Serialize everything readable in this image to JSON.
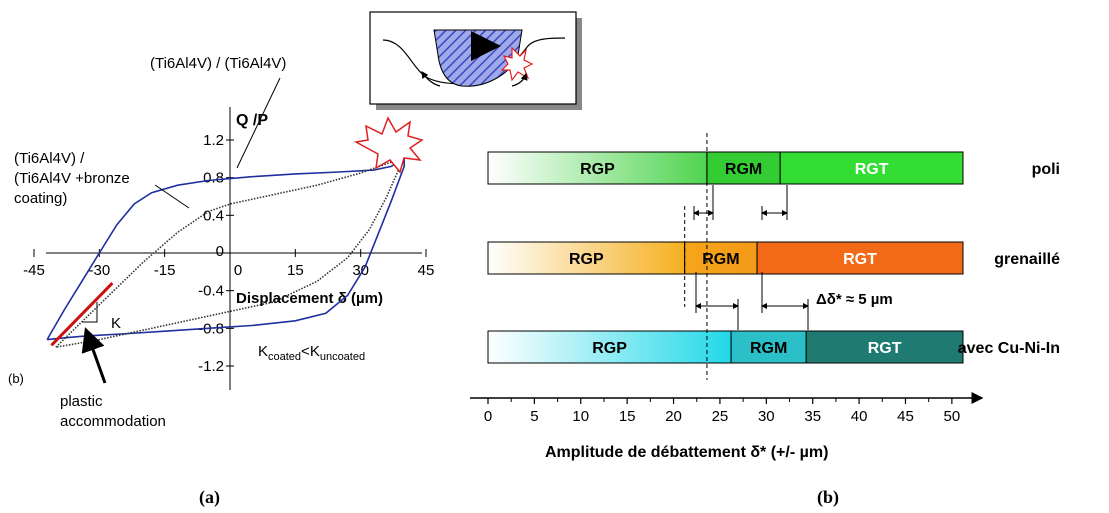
{
  "chart_data": [
    {
      "type": "line",
      "panel_label": "(a)",
      "corner_label": "(b)",
      "ylabel": "Q /P",
      "xlabel": "Displacement δ (µm)",
      "xlim": [
        -45,
        45
      ],
      "ylim": [
        -1.2,
        1.2
      ],
      "x_ticks": [
        "-45",
        "-30",
        "-15",
        "0",
        "15",
        "30",
        "45"
      ],
      "y_ticks": [
        "1.2",
        "0.8",
        "0.4",
        "0",
        "-0.4",
        "-0.8",
        "-1.2"
      ],
      "annotations": {
        "uncoated": "(Ti6Al4V) / (Ti6Al4V)",
        "coated_1": "(Ti6Al4V) /",
        "coated_2": "(Ti6Al4V +bronze",
        "coated_3": "coating)",
        "k_label": "K",
        "k_compare_base1": "K",
        "k_compare_sub1": "coated",
        "k_compare_lt": "<",
        "k_compare_base2": "K",
        "k_compare_sub2": "uncoated",
        "plastic_1": "plastic",
        "plastic_2": "accommodation"
      },
      "series": [
        {
          "style": "solid",
          "color": "#1f2f9e",
          "points_upper": [
            [
              -42,
              -0.92
            ],
            [
              -38,
              -0.6
            ],
            [
              -34,
              -0.3
            ],
            [
              -30,
              0.0
            ],
            [
              -26,
              0.3
            ],
            [
              -22,
              0.52
            ],
            [
              -18,
              0.64
            ],
            [
              -12,
              0.72
            ],
            [
              -5,
              0.77
            ],
            [
              5,
              0.81
            ],
            [
              15,
              0.84
            ],
            [
              25,
              0.86
            ],
            [
              33,
              0.88
            ],
            [
              37,
              0.92
            ],
            [
              40,
              1.0
            ]
          ],
          "points_lower": [
            [
              40,
              0.92
            ],
            [
              37,
              0.55
            ],
            [
              34,
              0.2
            ],
            [
              31,
              -0.15
            ],
            [
              27,
              -0.45
            ],
            [
              22,
              -0.64
            ],
            [
              15,
              -0.72
            ],
            [
              5,
              -0.77
            ],
            [
              -5,
              -0.8
            ],
            [
              -15,
              -0.83
            ],
            [
              -25,
              -0.86
            ],
            [
              -33,
              -0.88
            ],
            [
              -38,
              -0.9
            ],
            [
              -42,
              -0.92
            ]
          ]
        },
        {
          "style": "dotted",
          "color": "#333333",
          "points_upper": [
            [
              -40,
              -1.0
            ],
            [
              -30,
              -0.55
            ],
            [
              -20,
              -0.1
            ],
            [
              -12,
              0.22
            ],
            [
              -5,
              0.44
            ],
            [
              0,
              0.52
            ],
            [
              10,
              0.62
            ],
            [
              20,
              0.72
            ],
            [
              30,
              0.85
            ],
            [
              38,
              0.98
            ],
            [
              40,
              1.02
            ]
          ],
          "points_lower": [
            [
              40,
              1.02
            ],
            [
              36,
              0.6
            ],
            [
              32,
              0.25
            ],
            [
              27,
              -0.05
            ],
            [
              20,
              -0.3
            ],
            [
              10,
              -0.52
            ],
            [
              0,
              -0.62
            ],
            [
              -10,
              -0.72
            ],
            [
              -20,
              -0.82
            ],
            [
              -30,
              -0.92
            ],
            [
              -40,
              -1.0
            ]
          ]
        },
        {
          "style": "solid",
          "color": "#cc1111",
          "points": [
            [
              -41,
              -0.98
            ],
            [
              -34,
              -0.65
            ],
            [
              -27,
              -0.32
            ]
          ]
        }
      ]
    },
    {
      "type": "bar",
      "panel_label": "(b)",
      "xlabel": "Amplitude de débattement δ* (+/- µm)",
      "xlim": [
        0,
        52
      ],
      "x_ticks": [
        "0",
        "5",
        "10",
        "15",
        "20",
        "25",
        "30",
        "35",
        "40",
        "45",
        "50"
      ],
      "dashed_lines": [
        23.6,
        21.2
      ],
      "delta_label": "Δδ* ≈ 5 µm",
      "rows": [
        {
          "name": "poli",
          "segments": [
            {
              "label": "RGP",
              "start": 0,
              "end": 23.6,
              "color_from": "#ffffff",
              "color_to": "#4fd44f",
              "text_color": "#000000"
            },
            {
              "label": "RGM",
              "start": 23.6,
              "end": 31.5,
              "color_from": "#33cc33",
              "color_to": "#33cc33",
              "text_color": "#000000"
            },
            {
              "label": "RGT",
              "start": 31.5,
              "end": 51.2,
              "color_from": "#33dd33",
              "color_to": "#33dd33",
              "text_color": "#ffffff"
            }
          ]
        },
        {
          "name": "grenaillé",
          "segments": [
            {
              "label": "RGP",
              "start": 0,
              "end": 21.2,
              "color_from": "#ffffff",
              "color_to": "#f5b020",
              "text_color": "#000000"
            },
            {
              "label": "RGM",
              "start": 21.2,
              "end": 29.0,
              "color_from": "#f6a51a",
              "color_to": "#f39a18",
              "text_color": "#000000"
            },
            {
              "label": "RGT",
              "start": 29.0,
              "end": 51.2,
              "color_from": "#f26a18",
              "color_to": "#f26a18",
              "text_color": "#ffffff"
            }
          ]
        },
        {
          "name": "avec Cu-Ni-In",
          "segments": [
            {
              "label": "RGP",
              "start": 0,
              "end": 26.2,
              "color_from": "#ffffff",
              "color_to": "#22d8e8",
              "text_color": "#000000"
            },
            {
              "label": "RGM",
              "start": 26.2,
              "end": 34.3,
              "color_from": "#2bbfc8",
              "color_to": "#2bbfc8",
              "text_color": "#000000"
            },
            {
              "label": "RGT",
              "start": 34.3,
              "end": 51.2,
              "color_from": "#1f7a72",
              "color_to": "#1f7a72",
              "text_color": "#ffffff"
            }
          ]
        }
      ]
    }
  ]
}
